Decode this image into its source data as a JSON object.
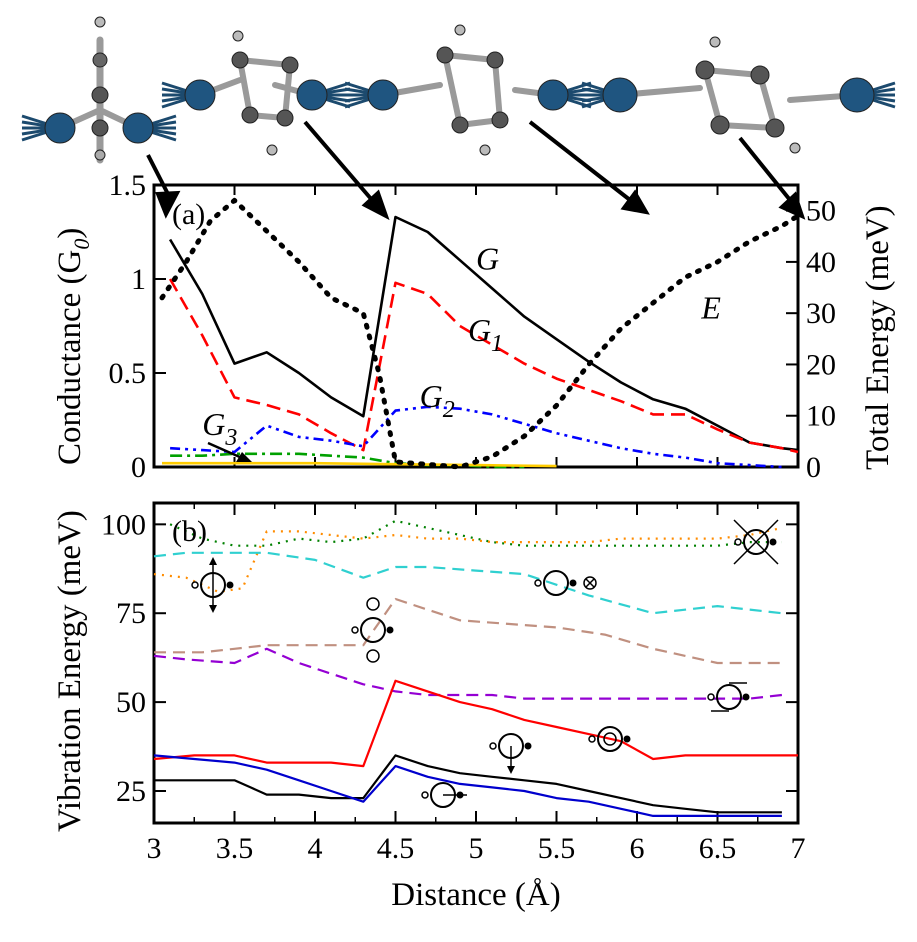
{
  "chart_data": [
    {
      "type": "line",
      "panel_label": "(a)",
      "ylabel_left": "Conductance (G",
      "ylabel_left_sub": "0",
      "ylabel_left_close": ")",
      "ylabel_right": "Total Energy (meV)",
      "xlim": [
        3,
        7
      ],
      "ylim": [
        0,
        1.5
      ],
      "ylim_right": [
        0,
        55
      ],
      "x_ticks": [],
      "y_ticks": [
        {
          "v": 0,
          "label": "0"
        },
        {
          "v": 0.5,
          "label": "0.5"
        },
        {
          "v": 1,
          "label": "1"
        },
        {
          "v": 1.5,
          "label": "1.5"
        }
      ],
      "y_ticks_right": [
        {
          "v": 0,
          "label": "0"
        },
        {
          "v": 10,
          "label": "10"
        },
        {
          "v": 20,
          "label": "20"
        },
        {
          "v": 30,
          "label": "30"
        },
        {
          "v": 40,
          "label": "40"
        },
        {
          "v": 50,
          "label": "50"
        }
      ],
      "series": [
        {
          "name": "G",
          "color": "#000000",
          "dash": "",
          "axis": "left",
          "x": [
            3.1,
            3.3,
            3.5,
            3.7,
            3.9,
            4.1,
            4.3,
            4.5,
            4.7,
            4.9,
            5.1,
            5.3,
            5.5,
            5.7,
            5.9,
            6.1,
            6.3,
            6.5,
            6.7,
            6.9,
            7.0
          ],
          "y": [
            1.21,
            0.92,
            0.55,
            0.61,
            0.5,
            0.37,
            0.27,
            1.33,
            1.25,
            1.1,
            0.95,
            0.8,
            0.68,
            0.56,
            0.45,
            0.36,
            0.31,
            0.22,
            0.13,
            0.1,
            0.09
          ]
        },
        {
          "name": "G1",
          "color": "#ff0000",
          "dash": "14,7",
          "axis": "left",
          "x": [
            3.1,
            3.3,
            3.5,
            3.7,
            3.9,
            4.1,
            4.3,
            4.5,
            4.7,
            4.9,
            5.1,
            5.3,
            5.5,
            5.7,
            5.9,
            6.1,
            6.3,
            6.5,
            6.7,
            6.9,
            7.0
          ],
          "y": [
            1.0,
            0.7,
            0.37,
            0.33,
            0.28,
            0.18,
            0.09,
            0.98,
            0.92,
            0.75,
            0.65,
            0.55,
            0.47,
            0.41,
            0.35,
            0.28,
            0.28,
            0.2,
            0.13,
            0.1,
            0.08
          ]
        },
        {
          "name": "G2",
          "color": "#0000ff",
          "dash": "10,5,3,5,3,5",
          "axis": "left",
          "x": [
            3.1,
            3.3,
            3.5,
            3.7,
            3.9,
            4.1,
            4.3,
            4.5,
            4.7,
            4.9,
            5.1,
            5.3,
            5.5,
            5.7,
            5.9,
            6.1,
            6.3,
            6.5,
            6.7,
            6.9
          ],
          "y": [
            0.1,
            0.09,
            0.08,
            0.22,
            0.16,
            0.14,
            0.11,
            0.3,
            0.32,
            0.31,
            0.28,
            0.23,
            0.18,
            0.14,
            0.1,
            0.07,
            0.05,
            0.02,
            0.01,
            0.0
          ]
        },
        {
          "name": "G3",
          "color": "#00a000",
          "dash": "12,5,3,5",
          "axis": "left",
          "x": [
            3.1,
            3.3,
            3.5,
            3.7,
            3.9,
            4.1,
            4.3,
            4.5,
            4.7,
            4.9,
            5.1,
            5.3
          ],
          "y": [
            0.06,
            0.06,
            0.07,
            0.07,
            0.07,
            0.06,
            0.05,
            0.02,
            0.01,
            0.01,
            0.0,
            0.0
          ]
        },
        {
          "name": "G4",
          "color": "#ffcc00",
          "dash": "",
          "axis": "left",
          "x": [
            3.05,
            3.5,
            4.0,
            4.5,
            5.0,
            5.5
          ],
          "y": [
            0.02,
            0.02,
            0.02,
            0.015,
            0.01,
            0.005
          ]
        },
        {
          "name": "E",
          "color": "#000000",
          "dash": "2,9",
          "axis": "right",
          "x": [
            3.05,
            3.2,
            3.35,
            3.5,
            3.7,
            3.9,
            4.1,
            4.3,
            4.4,
            4.5,
            4.7,
            4.9,
            5.1,
            5.3,
            5.5,
            5.7,
            5.9,
            6.1,
            6.3,
            6.5,
            6.7,
            6.9,
            7.0
          ],
          "y": [
            33,
            40,
            48,
            52,
            46,
            40,
            33,
            30,
            18,
            1,
            0.5,
            0,
            2,
            6,
            12,
            20,
            27,
            32,
            37,
            40,
            44,
            47,
            49
          ]
        }
      ],
      "labels": [
        {
          "text": "G",
          "sub": "",
          "x": 5.0,
          "y": 1.05
        },
        {
          "text": "G",
          "sub": "1",
          "x": 4.95,
          "y": 0.67
        },
        {
          "text": "G",
          "sub": "2",
          "x": 4.65,
          "y": 0.32
        },
        {
          "text": "G",
          "sub": "3",
          "x": 3.3,
          "y": 0.17
        },
        {
          "text": "E",
          "x": 6.4,
          "y": 0.79
        }
      ]
    },
    {
      "type": "line",
      "panel_label": "(b)",
      "xlabel": "Distance (Å)",
      "ylabel": "Vibration Energy (meV)",
      "xlim": [
        3,
        7
      ],
      "ylim": [
        16,
        106
      ],
      "x_ticks": [
        {
          "v": 3,
          "label": "3"
        },
        {
          "v": 3.5,
          "label": "3.5"
        },
        {
          "v": 4,
          "label": "4"
        },
        {
          "v": 4.5,
          "label": "4.5"
        },
        {
          "v": 5,
          "label": "5"
        },
        {
          "v": 5.5,
          "label": "5.5"
        },
        {
          "v": 6,
          "label": "6"
        },
        {
          "v": 6.5,
          "label": "6.5"
        },
        {
          "v": 7,
          "label": "7"
        }
      ],
      "y_ticks": [
        {
          "v": 25,
          "label": "25"
        },
        {
          "v": 50,
          "label": "50"
        },
        {
          "v": 75,
          "label": "75"
        },
        {
          "v": 100,
          "label": "100"
        }
      ],
      "series": [
        {
          "color": "#008000",
          "dash": "2,6",
          "x": [
            3.1,
            3.3,
            3.5,
            3.7,
            3.9,
            4.1,
            4.3,
            4.5,
            4.7,
            4.9,
            5.1,
            5.3,
            5.5,
            5.7,
            5.9,
            6.1,
            6.3,
            6.5,
            6.7,
            6.9
          ],
          "y": [
            100,
            96,
            94,
            94,
            96,
            95,
            96,
            101,
            99,
            97,
            95,
            94,
            94,
            94,
            94,
            94,
            94,
            94,
            95,
            95
          ]
        },
        {
          "color": "#ff8c00",
          "dash": "2,6",
          "x": [
            3.0,
            3.2,
            3.4,
            3.55,
            3.7,
            3.9,
            4.1,
            4.3,
            4.5,
            4.7,
            4.9,
            5.1,
            5.3,
            5.5,
            5.7,
            5.9,
            6.1,
            6.3,
            6.5,
            6.7,
            6.9
          ],
          "y": [
            86,
            85,
            81,
            82,
            98,
            98,
            97,
            96,
            97,
            96,
            96,
            95,
            95,
            95,
            95,
            96,
            96,
            96,
            96,
            97,
            99
          ]
        },
        {
          "color": "#30d0d0",
          "dash": "12,7",
          "x": [
            3.0,
            3.2,
            3.5,
            3.7,
            4.0,
            4.3,
            4.5,
            4.7,
            5.0,
            5.3,
            5.7,
            6.1,
            6.5,
            6.9
          ],
          "y": [
            91,
            92,
            92,
            92,
            90,
            85,
            88,
            88,
            87,
            86,
            80,
            75,
            77,
            75
          ]
        },
        {
          "color": "#c09080",
          "dash": "12,7",
          "x": [
            3.0,
            3.3,
            3.5,
            3.7,
            4.0,
            4.3,
            4.5,
            4.7,
            4.9,
            5.2,
            5.5,
            5.8,
            6.1,
            6.3,
            6.5,
            6.9
          ],
          "y": [
            64,
            64,
            65,
            66,
            66,
            66,
            79,
            76,
            73,
            72,
            71,
            69,
            65,
            63,
            61,
            61
          ]
        },
        {
          "color": "#9400d3",
          "dash": "12,7",
          "x": [
            3.0,
            3.2,
            3.5,
            3.7,
            3.9,
            4.1,
            4.3,
            4.5,
            4.7,
            4.9,
            5.1,
            5.3,
            5.5,
            5.7,
            5.9,
            6.1,
            6.3,
            6.5,
            6.7,
            6.9
          ],
          "y": [
            63,
            62,
            61,
            65,
            61,
            58,
            55,
            53,
            52,
            52,
            52,
            51,
            51,
            51,
            51,
            51,
            51,
            51,
            51,
            52
          ]
        },
        {
          "color": "#ff0000",
          "dash": "",
          "x": [
            3.0,
            3.25,
            3.5,
            3.7,
            3.9,
            4.1,
            4.3,
            4.5,
            4.7,
            4.9,
            5.1,
            5.3,
            5.5,
            5.7,
            5.9,
            6.1,
            6.3,
            6.5,
            6.7,
            6.9,
            7.0
          ],
          "y": [
            34,
            35,
            35,
            33,
            33,
            33,
            32,
            56,
            53,
            50,
            48,
            45,
            43,
            41,
            39,
            34,
            35,
            35,
            35,
            35,
            35
          ]
        },
        {
          "color": "#000000",
          "dash": "",
          "x": [
            3.0,
            3.25,
            3.5,
            3.6,
            3.7,
            3.9,
            4.1,
            4.3,
            4.5,
            4.7,
            4.9,
            5.1,
            5.3,
            5.5,
            5.7,
            5.9,
            6.1,
            6.3,
            6.5,
            6.7,
            6.9
          ],
          "y": [
            28,
            28,
            28,
            26,
            24,
            24,
            23,
            23,
            35,
            32,
            30,
            29,
            28,
            27,
            25,
            23,
            21,
            20,
            19,
            19,
            19
          ]
        },
        {
          "color": "#0000cd",
          "dash": "",
          "x": [
            3.0,
            3.25,
            3.5,
            3.7,
            3.9,
            4.1,
            4.3,
            4.5,
            4.7,
            4.9,
            5.1,
            5.3,
            5.5,
            5.7,
            5.9,
            6.1,
            6.3,
            6.5,
            6.7,
            6.9
          ],
          "y": [
            35,
            34,
            33,
            31,
            28,
            25,
            22,
            32,
            29,
            27,
            26,
            25,
            23,
            22,
            20,
            18,
            18,
            18,
            18,
            18
          ]
        }
      ]
    }
  ]
}
